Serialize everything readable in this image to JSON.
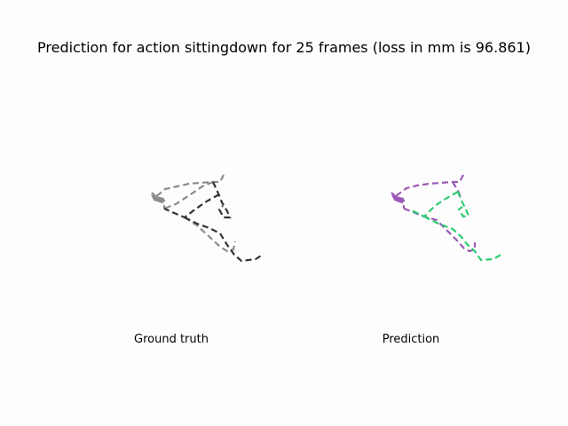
{
  "figure": {
    "title": "Prediction for action sittingdown for 25 frames (loss in mm is 96.861)"
  },
  "panels": [
    {
      "id": "ground-truth",
      "caption": "Ground truth",
      "colors": {
        "left_limbs": "#8c8c8c",
        "right_limbs": "#333333"
      }
    },
    {
      "id": "prediction",
      "caption": "Prediction",
      "colors": {
        "left_limbs": "#9b59b6",
        "right_limbs": "#2ecc71"
      }
    }
  ]
}
